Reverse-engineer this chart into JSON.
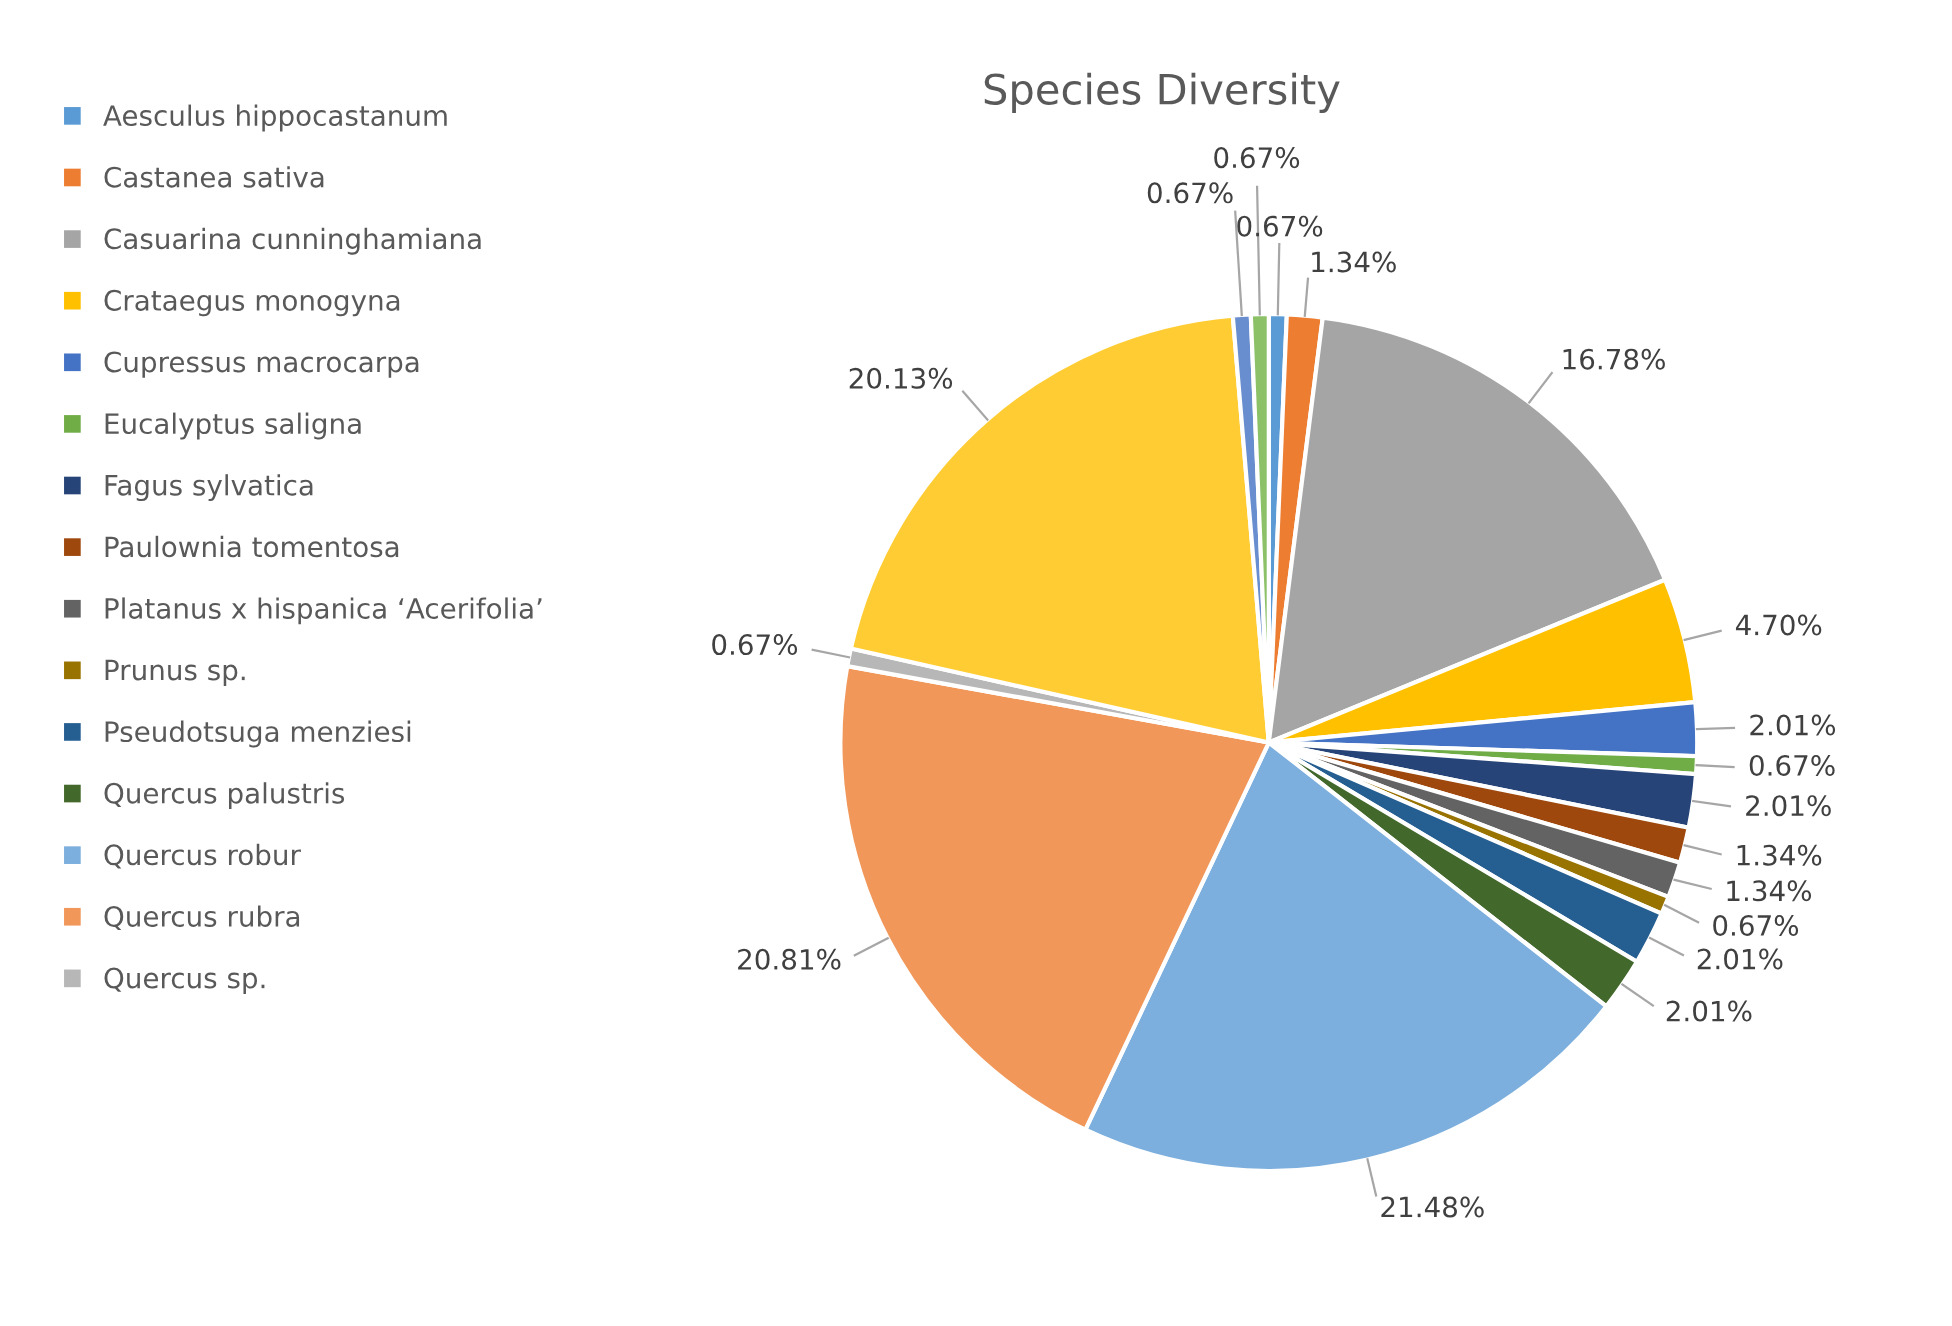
{
  "chart_data": {
    "type": "pie",
    "title": "Species Diversity",
    "categories": [
      "Aesculus hippocastanum",
      "Castanea sativa",
      "Casuarina cunninghamiana",
      "Crataegus monogyna",
      "Cupressus macrocarpa",
      "Eucalyptus saligna",
      "Fagus sylvatica",
      "Paulownia tomentosa",
      "Platanus x hispanica ‘Acerifolia’",
      "Prunus sp.",
      "Pseudotsuga menziesi",
      "Quercus palustris",
      "Quercus robur",
      "Quercus rubra",
      "Quercus sp.",
      null,
      null,
      null
    ],
    "values": [
      0.67,
      1.34,
      16.78,
      4.7,
      2.01,
      0.67,
      2.01,
      1.34,
      1.34,
      0.67,
      2.01,
      2.01,
      21.48,
      20.81,
      0.67,
      20.13,
      0.67,
      0.67
    ],
    "colors": [
      "#5b9bd5",
      "#ed7d31",
      "#a5a5a5",
      "#ffc000",
      "#4472c4",
      "#70ad47",
      "#264478",
      "#9e480e",
      "#636363",
      "#997300",
      "#255e91",
      "#43682b",
      "#7cafdd",
      "#f1975a",
      "#b7b7b7",
      "#ffcd33",
      "#698ed0",
      "#8cc168"
    ],
    "value_labels": [
      "0.67%",
      "1.34%",
      "16.78%",
      "4.70%",
      "2.01%",
      "0.67%",
      "2.01%",
      "1.34%",
      "1.34%",
      "0.67%",
      "2.01%",
      "2.01%",
      "21.48%",
      "20.81%",
      "0.67%",
      "20.13%",
      "0.67%",
      "0.67%"
    ],
    "data_labels": true,
    "legend": "left"
  }
}
